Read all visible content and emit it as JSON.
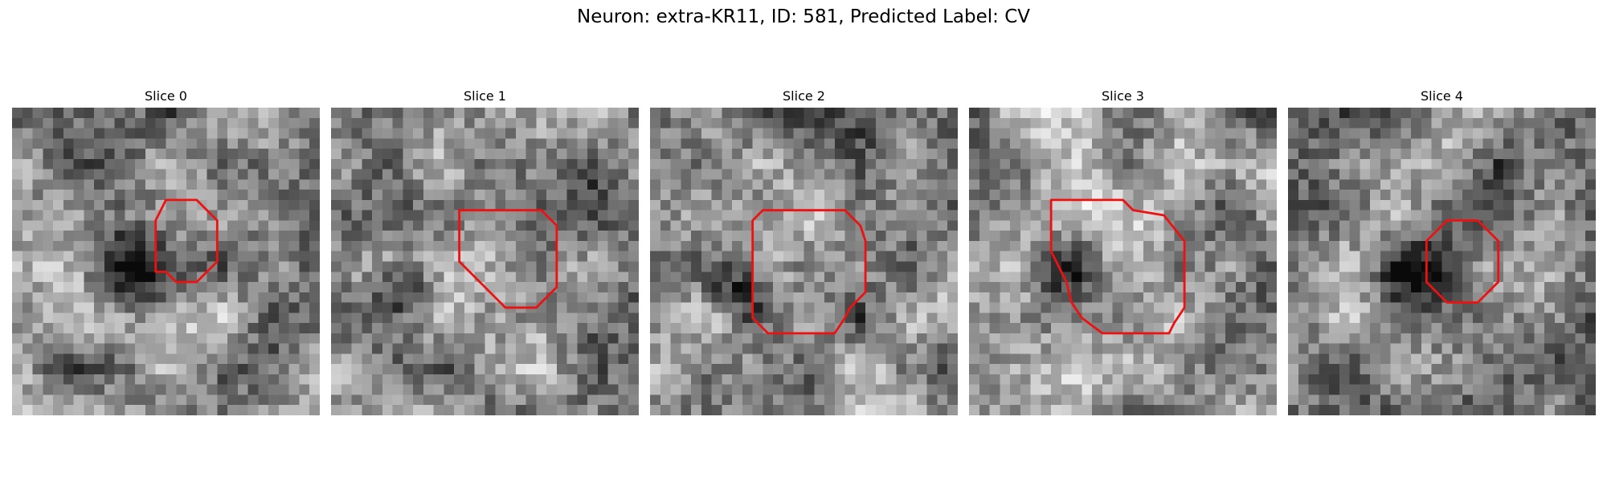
{
  "figure": {
    "title": "Neuron: extra-KR11, ID: 581, Predicted Label: CV"
  },
  "outline_color": "#ee1111",
  "panels": [
    {
      "title": "Slice 0",
      "seed": 11,
      "dark_blob": [
        12,
        16,
        5.5
      ],
      "outline": [
        [
          15,
          9
        ],
        [
          18,
          9
        ],
        [
          20,
          11
        ],
        [
          20,
          15
        ],
        [
          18,
          17
        ],
        [
          16,
          17
        ],
        [
          15,
          16
        ],
        [
          14,
          16
        ],
        [
          14,
          11
        ]
      ]
    },
    {
      "title": "Slice 1",
      "seed": 23,
      "dark_blob": [
        7,
        17,
        4.5
      ],
      "outline": [
        [
          12.5,
          10
        ],
        [
          20.5,
          10
        ],
        [
          22,
          11.5
        ],
        [
          22,
          17.5
        ],
        [
          20,
          19.5
        ],
        [
          17,
          19.5
        ],
        [
          16,
          18.5
        ],
        [
          14,
          16.5
        ],
        [
          13,
          15.5
        ],
        [
          12.5,
          15
        ],
        [
          12.5,
          11.5
        ]
      ]
    },
    {
      "title": "Slice 2",
      "seed": 37,
      "dark_blob": [
        8,
        17,
        4.0
      ],
      "outline": [
        [
          11,
          10
        ],
        [
          19,
          10
        ],
        [
          20.5,
          11.5
        ],
        [
          21,
          13
        ],
        [
          21,
          18
        ],
        [
          19.5,
          19.5
        ],
        [
          19,
          20.5
        ],
        [
          18,
          22
        ],
        [
          11.5,
          22
        ],
        [
          10,
          20.5
        ],
        [
          10,
          11
        ]
      ]
    },
    {
      "title": "Slice 3",
      "seed": 41,
      "dark_blob": [
        8,
        15,
        4.5
      ],
      "outline": [
        [
          8,
          9
        ],
        [
          15,
          9
        ],
        [
          16,
          10
        ],
        [
          19,
          10.5
        ],
        [
          21,
          13
        ],
        [
          21,
          19.5
        ],
        [
          20,
          21
        ],
        [
          19.5,
          22
        ],
        [
          13,
          22
        ],
        [
          11,
          20.5
        ],
        [
          10,
          19
        ],
        [
          9.5,
          17
        ],
        [
          9,
          16
        ],
        [
          8.5,
          15
        ],
        [
          8,
          14
        ]
      ]
    },
    {
      "title": "Slice 4",
      "seed": 53,
      "dark_blob": [
        12,
        16,
        4.5
      ],
      "outline": [
        [
          15.5,
          11
        ],
        [
          18.5,
          11
        ],
        [
          20.5,
          13
        ],
        [
          20.5,
          17
        ],
        [
          19.5,
          18
        ],
        [
          18.5,
          19
        ],
        [
          15.5,
          19
        ],
        [
          13.5,
          17
        ],
        [
          13.5,
          13
        ]
      ]
    }
  ]
}
